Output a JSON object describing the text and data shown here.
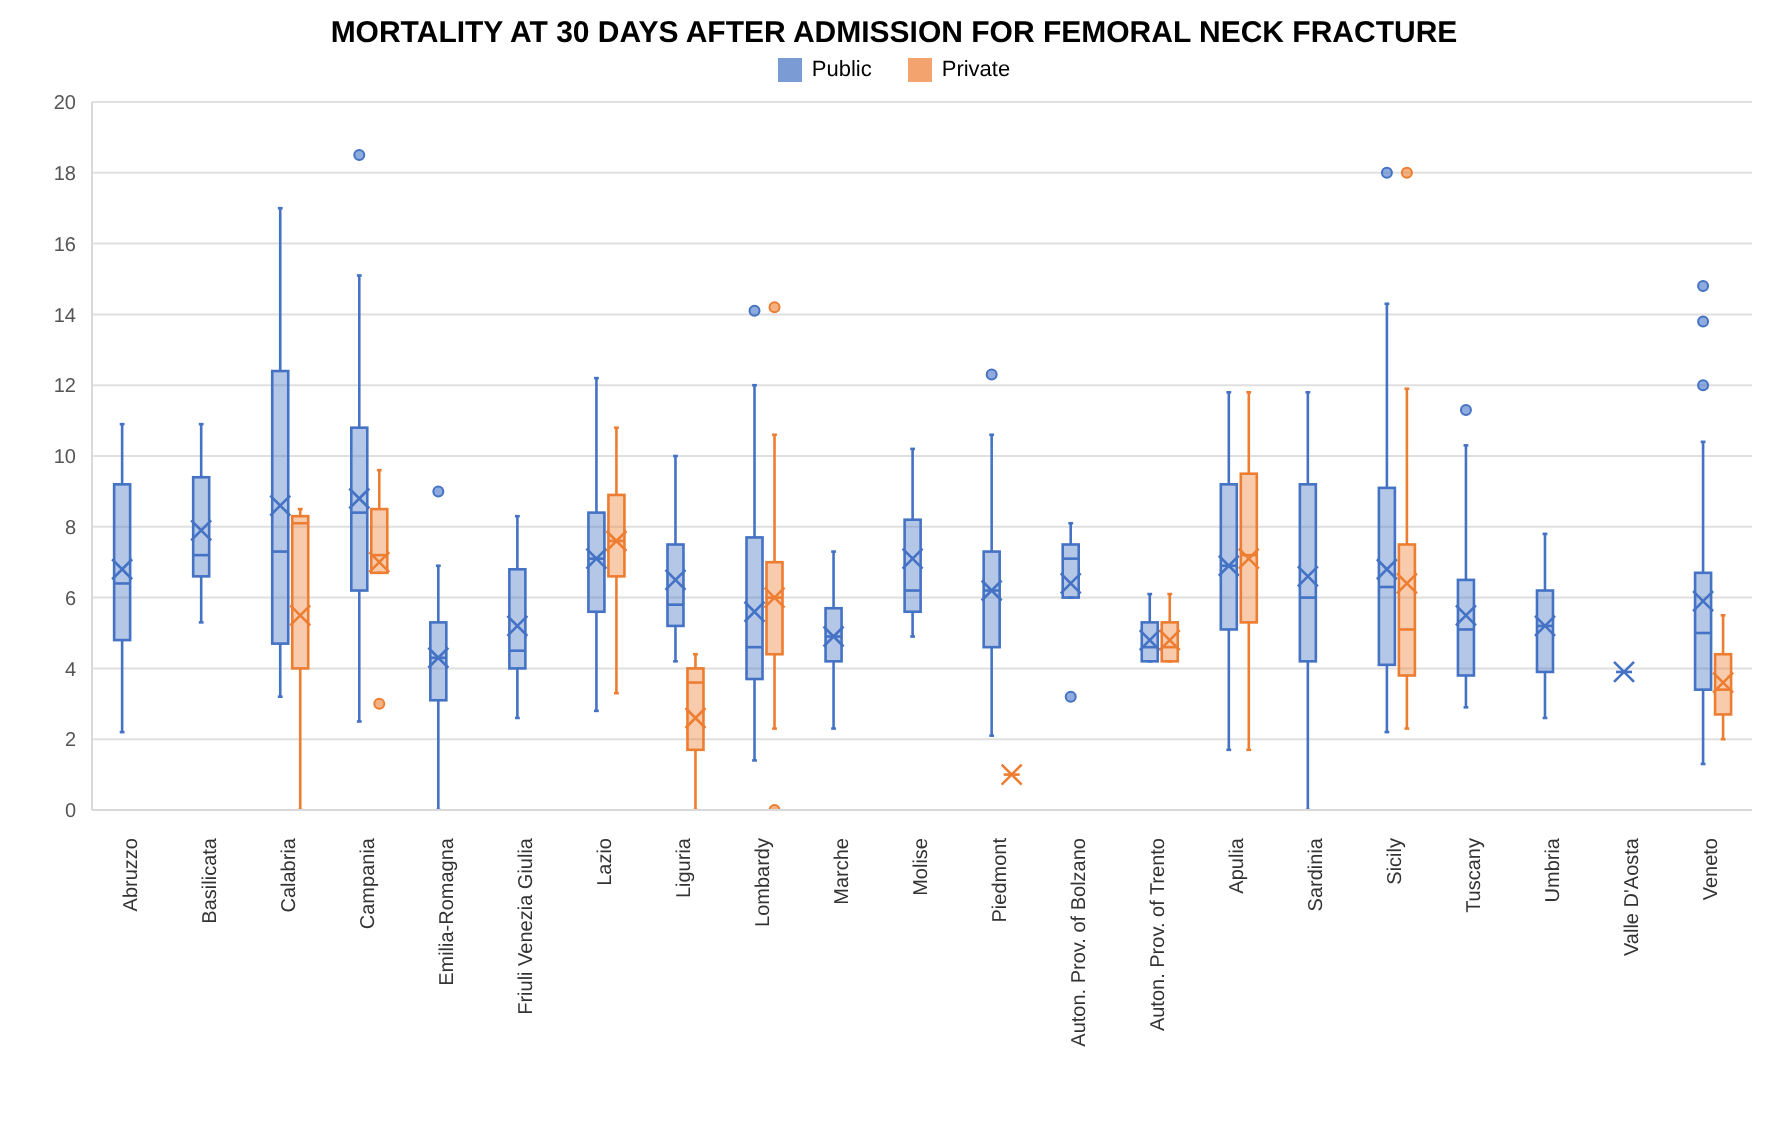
{
  "chart_data": {
    "type": "box",
    "title": "MORTALITY AT 30 DAYS AFTER ADMISSION FOR FEMORAL NECK FRACTURE",
    "categories": [
      "Abruzzo",
      "Basilicata",
      "Calabria",
      "Campania",
      "Emilia-Romagna",
      "Friuli Venezia Giulia",
      "Lazio",
      "Liguria",
      "Lombardy",
      "Marche",
      "Molise",
      "Piedmont",
      "Auton. Prov. of Bolzano",
      "Auton. Prov. of Trento",
      "Apulia",
      "Sardinia",
      "Sicily",
      "Tuscany",
      "Umbria",
      "Valle D'Aosta",
      "Veneto"
    ],
    "series": [
      {
        "name": "Public",
        "color": "#4472c4",
        "boxes": [
          {
            "low": 2.2,
            "q1": 4.8,
            "median": 6.4,
            "q3": 9.2,
            "high": 10.9,
            "mean": 6.8
          },
          {
            "low": 5.3,
            "q1": 6.6,
            "median": 7.2,
            "q3": 9.4,
            "high": 10.9,
            "mean": 7.9
          },
          {
            "low": 3.2,
            "q1": 4.7,
            "median": 7.3,
            "q3": 12.4,
            "high": 17,
            "mean": 8.6
          },
          {
            "low": 2.5,
            "q1": 6.2,
            "median": 8.4,
            "q3": 10.8,
            "high": 15.1,
            "mean": 8.8,
            "outliers": [
              18.5
            ]
          },
          {
            "low": 0,
            "q1": 3.1,
            "median": 4.3,
            "q3": 5.3,
            "high": 6.9,
            "mean": 4.3,
            "outliers": [
              9
            ]
          },
          {
            "low": 2.6,
            "q1": 4.0,
            "median": 4.5,
            "q3": 6.8,
            "high": 8.3,
            "mean": 5.2
          },
          {
            "low": 2.8,
            "q1": 5.6,
            "median": 7.1,
            "q3": 8.4,
            "high": 12.2,
            "mean": 7.1
          },
          {
            "low": 4.2,
            "q1": 5.2,
            "median": 5.8,
            "q3": 7.5,
            "high": 10,
            "mean": 6.5
          },
          {
            "low": 1.4,
            "q1": 3.7,
            "median": 4.6,
            "q3": 7.7,
            "high": 12,
            "mean": 5.6,
            "outliers": [
              14.1
            ]
          },
          {
            "low": 2.3,
            "q1": 4.2,
            "median": 4.9,
            "q3": 5.7,
            "high": 7.3,
            "mean": 4.9
          },
          {
            "low": 4.9,
            "q1": 5.6,
            "median": 6.2,
            "q3": 8.2,
            "high": 10.2,
            "mean": 7.1
          },
          {
            "low": 2.1,
            "q1": 4.6,
            "median": 6.2,
            "q3": 7.3,
            "high": 10.6,
            "mean": 6.2,
            "outliers": [
              12.3
            ]
          },
          {
            "low": 6.0,
            "q1": 6.0,
            "median": 7.1,
            "q3": 7.5,
            "high": 8.1,
            "mean": 6.4,
            "outliers": [
              3.2
            ]
          },
          {
            "low": 4.2,
            "q1": 4.2,
            "median": 4.6,
            "q3": 5.3,
            "high": 6.1,
            "mean": 4.8
          },
          {
            "low": 1.7,
            "q1": 5.1,
            "median": 6.9,
            "q3": 9.2,
            "high": 11.8,
            "mean": 6.9
          },
          {
            "low": 0,
            "q1": 4.2,
            "median": 6.0,
            "q3": 9.2,
            "high": 11.8,
            "mean": 6.6
          },
          {
            "low": 2.2,
            "q1": 4.1,
            "median": 6.3,
            "q3": 9.1,
            "high": 14.3,
            "mean": 6.8,
            "outliers": [
              18
            ]
          },
          {
            "low": 2.9,
            "q1": 3.8,
            "median": 5.1,
            "q3": 6.5,
            "high": 10.3,
            "mean": 5.5,
            "outliers": [
              11.3
            ]
          },
          {
            "low": 2.6,
            "q1": 3.9,
            "median": 5.2,
            "q3": 6.2,
            "high": 7.8,
            "mean": 5.2
          },
          {
            "low": 3.9,
            "q1": 3.9,
            "median": 3.9,
            "q3": 3.9,
            "high": 3.9,
            "mean": 3.9
          },
          {
            "low": 1.3,
            "q1": 3.4,
            "median": 5.0,
            "q3": 6.7,
            "high": 10.4,
            "mean": 5.9,
            "outliers": [
              12,
              13.8,
              14.8
            ]
          }
        ]
      },
      {
        "name": "Private",
        "color": "#ed7d31",
        "boxes": [
          null,
          null,
          {
            "low": 0,
            "q1": 4.0,
            "median": 8.1,
            "q3": 8.3,
            "high": 8.5,
            "mean": 5.5
          },
          {
            "low": 6.7,
            "q1": 6.7,
            "median": 7.2,
            "q3": 8.5,
            "high": 9.6,
            "mean": 7.0,
            "outliers": [
              3.0
            ]
          },
          null,
          null,
          {
            "low": 3.3,
            "q1": 6.6,
            "median": 7.6,
            "q3": 8.9,
            "high": 10.8,
            "mean": 7.6
          },
          {
            "low": 0,
            "q1": 1.7,
            "median": 3.6,
            "q3": 4.0,
            "high": 4.4,
            "mean": 2.6
          },
          {
            "low": 2.3,
            "q1": 4.4,
            "median": 6.0,
            "q3": 7.0,
            "high": 10.6,
            "mean": 6.0,
            "outliers": [
              0,
              14.2
            ]
          },
          null,
          null,
          {
            "low": 1.0,
            "q1": 1.0,
            "median": 1.0,
            "q3": 1.0,
            "high": 1.0,
            "mean": 1.0
          },
          null,
          {
            "low": 4.2,
            "q1": 4.2,
            "median": 4.6,
            "q3": 5.3,
            "high": 6.1,
            "mean": 4.8
          },
          {
            "low": 1.7,
            "q1": 5.3,
            "median": 7.2,
            "q3": 9.5,
            "high": 11.8,
            "mean": 7.1
          },
          null,
          {
            "low": 2.3,
            "q1": 3.8,
            "median": 5.1,
            "q3": 7.5,
            "high": 11.9,
            "mean": 6.4,
            "outliers": [
              18
            ]
          },
          null,
          null,
          null,
          {
            "low": 2.0,
            "q1": 2.7,
            "median": 3.4,
            "q3": 4.4,
            "high": 5.5,
            "mean": 3.6
          }
        ]
      }
    ],
    "ylim": [
      0,
      20
    ],
    "yticks": [
      0,
      2,
      4,
      6,
      8,
      10,
      12,
      14,
      16,
      18,
      20
    ],
    "grid": "y",
    "legend": "top"
  }
}
